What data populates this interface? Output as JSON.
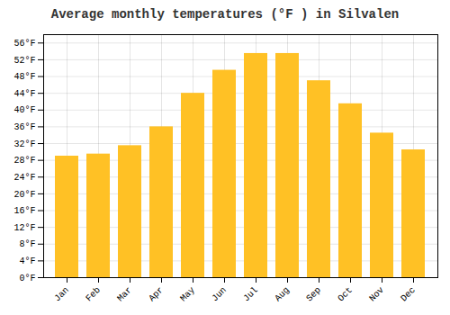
{
  "chart_data": {
    "type": "bar",
    "title": "Average monthly temperatures (°F ) in Silvalen",
    "categories": [
      "Jan",
      "Feb",
      "Mar",
      "Apr",
      "May",
      "Jun",
      "Jul",
      "Aug",
      "Sep",
      "Oct",
      "Nov",
      "Dec"
    ],
    "values": [
      29,
      29.5,
      31.5,
      36,
      44,
      49.5,
      53.5,
      53.5,
      47,
      41.5,
      34.5,
      30.5
    ],
    "color": "#FFC125",
    "ylim": [
      0,
      58
    ],
    "yticks": [
      {
        "value": 0,
        "label": "0°F"
      },
      {
        "value": 4,
        "label": "4°F"
      },
      {
        "value": 8,
        "label": "8°F"
      },
      {
        "value": 12,
        "label": "12°F"
      },
      {
        "value": 16,
        "label": "16°F"
      },
      {
        "value": 20,
        "label": "20°F"
      },
      {
        "value": 24,
        "label": "24°F"
      },
      {
        "value": 28,
        "label": "28°F"
      },
      {
        "value": 32,
        "label": "32°F"
      },
      {
        "value": 36,
        "label": "36°F"
      },
      {
        "value": 40,
        "label": "40°F"
      },
      {
        "value": 44,
        "label": "44°F"
      },
      {
        "value": 48,
        "label": "48°F"
      },
      {
        "value": 52,
        "label": "52°F"
      },
      {
        "value": 56,
        "label": "56°F"
      }
    ],
    "grid": true
  }
}
